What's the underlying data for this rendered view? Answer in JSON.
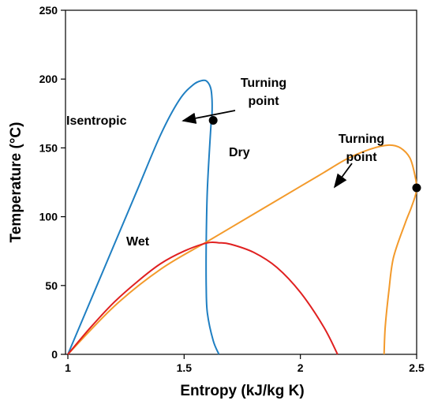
{
  "chart_data": {
    "type": "line",
    "xlabel": "Entropy (kJ/kg K)",
    "ylabel": "Temperature (°C)",
    "xlim": [
      1,
      2.5
    ],
    "ylim": [
      0,
      250
    ],
    "x_ticks": [
      1,
      1.5,
      2,
      2.5
    ],
    "x_tick_labels": [
      "1",
      "1.5",
      "2",
      "2.5"
    ],
    "y_ticks": [
      0,
      50,
      100,
      150,
      200,
      250
    ],
    "y_tick_labels": [
      "0",
      "50",
      "100",
      "150",
      "200",
      "250"
    ],
    "grid": false,
    "legend": "none",
    "series": [
      {
        "name": "Isentropic",
        "color": "#1f7fc2",
        "points": [
          [
            1.0,
            0
          ],
          [
            1.1,
            40
          ],
          [
            1.2,
            80
          ],
          [
            1.3,
            120
          ],
          [
            1.4,
            160
          ],
          [
            1.48,
            185
          ],
          [
            1.54,
            196
          ],
          [
            1.58,
            199
          ],
          [
            1.6,
            198
          ],
          [
            1.615,
            193
          ],
          [
            1.62,
            185
          ],
          [
            1.62,
            175
          ],
          [
            1.615,
            165
          ],
          [
            1.6,
            120
          ],
          [
            1.595,
            80
          ],
          [
            1.595,
            50
          ],
          [
            1.6,
            30
          ],
          [
            1.625,
            10
          ],
          [
            1.65,
            0
          ]
        ]
      },
      {
        "name": "Dry",
        "color": "#f39a2b",
        "points": [
          [
            1.0,
            0
          ],
          [
            1.2,
            35
          ],
          [
            1.4,
            62
          ],
          [
            1.6,
            82
          ],
          [
            1.8,
            102
          ],
          [
            2.0,
            122
          ],
          [
            2.1,
            132
          ],
          [
            2.2,
            142
          ],
          [
            2.3,
            149
          ],
          [
            2.38,
            152
          ],
          [
            2.43,
            150
          ],
          [
            2.47,
            143
          ],
          [
            2.49,
            132
          ],
          [
            2.5,
            120
          ],
          [
            2.48,
            108
          ],
          [
            2.45,
            95
          ],
          [
            2.4,
            70
          ],
          [
            2.38,
            45
          ],
          [
            2.365,
            20
          ],
          [
            2.36,
            0
          ]
        ]
      },
      {
        "name": "Wet",
        "color": "#e02020",
        "points": [
          [
            1.0,
            0
          ],
          [
            1.1,
            20
          ],
          [
            1.2,
            38
          ],
          [
            1.3,
            53
          ],
          [
            1.4,
            66
          ],
          [
            1.5,
            75
          ],
          [
            1.6,
            81
          ],
          [
            1.65,
            81
          ],
          [
            1.7,
            80
          ],
          [
            1.8,
            74
          ],
          [
            1.9,
            63
          ],
          [
            2.0,
            45
          ],
          [
            2.1,
            20
          ],
          [
            2.16,
            0
          ]
        ]
      }
    ],
    "markers": [
      {
        "x": 1.625,
        "y": 170,
        "label": "Turning point"
      },
      {
        "x": 2.5,
        "y": 121,
        "label": "Turning point"
      }
    ],
    "annotations": {
      "isentropic": "Isentropic",
      "dry": "Dry",
      "wet": "Wet",
      "turning1_line1": "Turning",
      "turning1_line2": "point",
      "turning2_line1": "Turning",
      "turning2_line2": "point"
    }
  }
}
